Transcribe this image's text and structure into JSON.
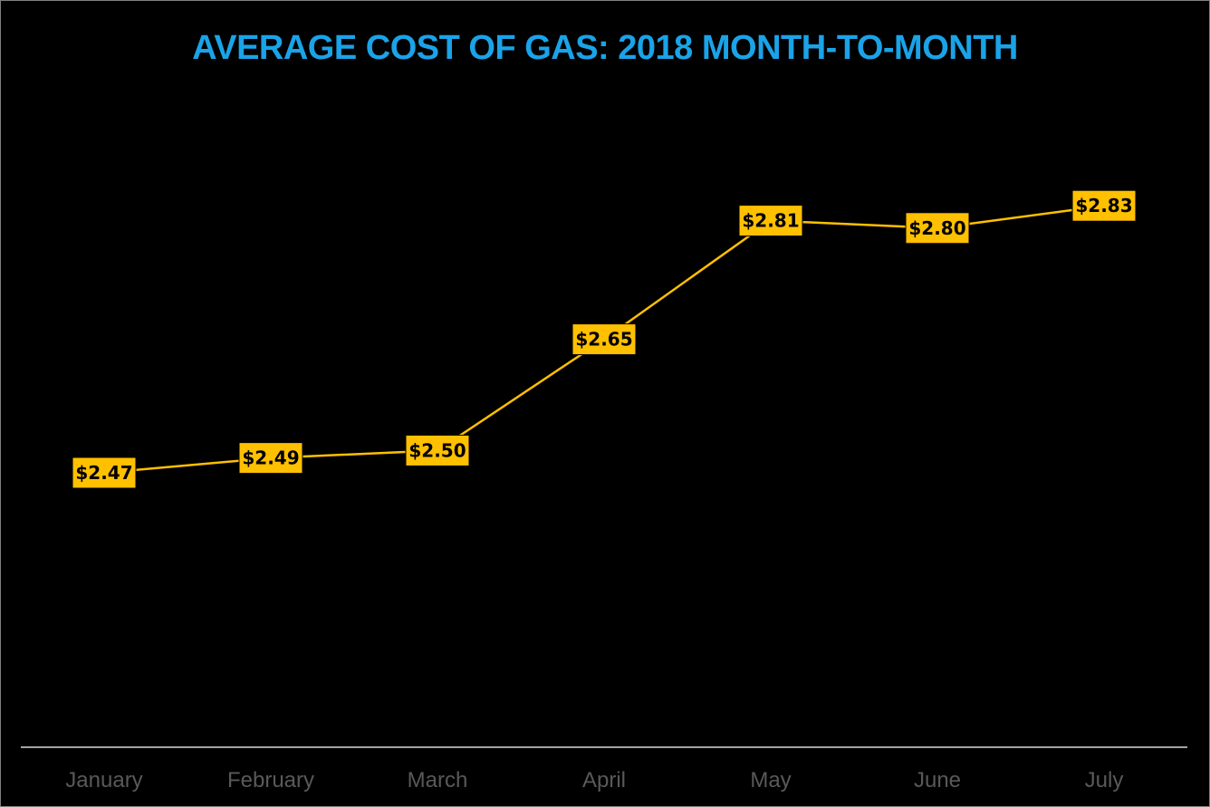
{
  "chart_data": {
    "type": "line",
    "title": "AVERAGE COST OF GAS: 2018 MONTH-TO-MONTH",
    "categories": [
      "January",
      "February",
      "March",
      "April",
      "May",
      "June",
      "July"
    ],
    "series": [
      {
        "values": [
          2.47,
          2.49,
          2.5,
          2.65,
          2.81,
          2.8,
          2.83
        ],
        "data_labels": [
          "$2.47",
          "$2.49",
          "$2.50",
          "$2.65",
          "$2.81",
          "$2.80",
          "$2.83"
        ],
        "color": "#ffc000"
      }
    ],
    "xlabel": "",
    "ylabel": "",
    "ylim": [
      2.1,
      3.0
    ],
    "grid": false,
    "legend": "none"
  },
  "colors": {
    "background": "#000000",
    "title": "#1aa3e8",
    "line": "#ffc000",
    "label_fill": "#ffc000",
    "axis": "#d9d9d9",
    "tick_text": "#595959"
  }
}
